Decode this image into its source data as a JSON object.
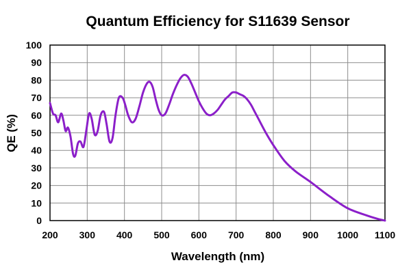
{
  "chart_data": {
    "type": "line",
    "title": "Quantum Efficiency for S11639 Sensor",
    "xlabel": "Wavelength (nm)",
    "ylabel": "QE (%)",
    "xlim": [
      200,
      1100
    ],
    "ylim": [
      0,
      100
    ],
    "xticks": [
      200,
      300,
      400,
      500,
      600,
      700,
      800,
      900,
      1000,
      1100
    ],
    "yticks": [
      0,
      10,
      20,
      30,
      40,
      50,
      60,
      70,
      80,
      90,
      100
    ],
    "grid": true,
    "legend": "none",
    "line_color": "#8b1fc9",
    "series": [
      {
        "x": [
          200,
          208,
          215,
          222,
          230,
          236,
          242,
          248,
          255,
          262,
          268,
          275,
          282,
          290,
          298,
          305,
          312,
          320,
          328,
          336,
          345,
          352,
          360,
          368,
          376,
          385,
          395,
          402,
          410,
          420,
          430,
          440,
          450,
          460,
          468,
          476,
          484,
          492,
          500,
          510,
          520,
          530,
          540,
          550,
          560,
          570,
          580,
          590,
          600,
          610,
          620,
          630,
          640,
          650,
          660,
          670,
          680,
          690,
          700,
          710,
          720,
          730,
          740,
          750,
          760,
          780,
          800,
          830,
          860,
          900,
          950,
          1000,
          1050,
          1080,
          1100
        ],
        "values": [
          67,
          61,
          60,
          56,
          61,
          57,
          51,
          53,
          48,
          38,
          37,
          44,
          45,
          42,
          52,
          61,
          58,
          49,
          51,
          60,
          62,
          55,
          45,
          47,
          60,
          70,
          70,
          66,
          60,
          56,
          58,
          65,
          73,
          78,
          79,
          76,
          69,
          63,
          60,
          61,
          66,
          72,
          77,
          81,
          83,
          82,
          78,
          73,
          68,
          64,
          61,
          60,
          61,
          63,
          66,
          69,
          71,
          73,
          73,
          72,
          71,
          69,
          66,
          62,
          58,
          50,
          43,
          34,
          28,
          22,
          14,
          7,
          3,
          1,
          0
        ]
      }
    ]
  }
}
